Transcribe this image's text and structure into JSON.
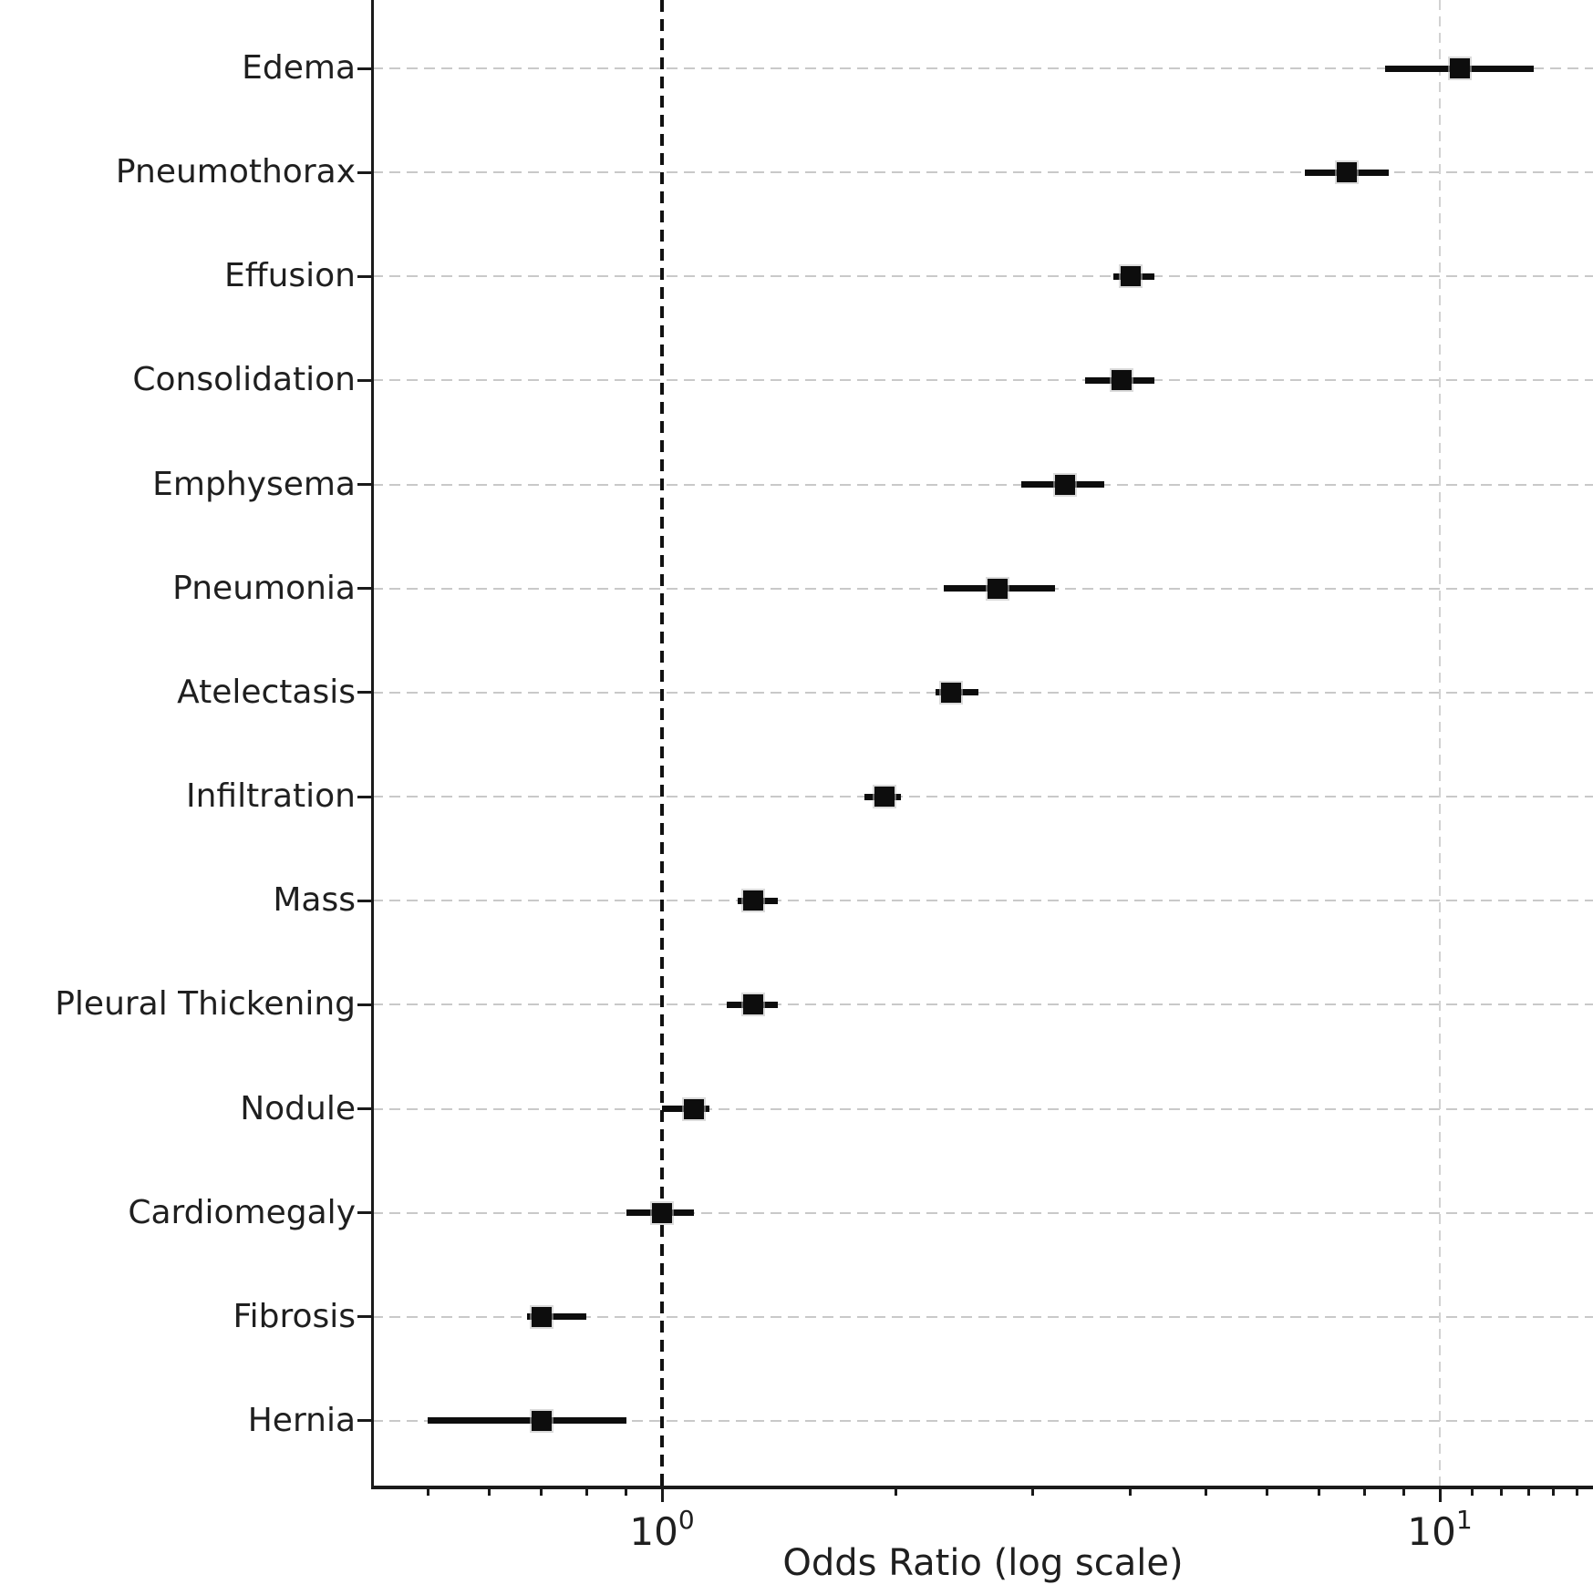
{
  "chart_data": {
    "type": "scatter",
    "subtype": "forest-plot-odds-ratios",
    "title": "",
    "xlabel": "Odds Ratio (log scale)",
    "ylabel": "",
    "x_scale": "log",
    "xlim": [
      0.43,
      15.7
    ],
    "grid": {
      "horizontal_dashed": true,
      "vertical_dashed_at": [
        10
      ],
      "color": "#c9c9c9"
    },
    "reference_line": {
      "x": 1.0,
      "style": "dashed",
      "color": "#111111"
    },
    "marker": {
      "shape": "square",
      "color": "#0d0d0d"
    },
    "legend": null,
    "x_major_ticks": [
      {
        "value": 1,
        "base": "10",
        "exp": "0"
      },
      {
        "value": 10,
        "base": "10",
        "exp": "1"
      }
    ],
    "x_minor_tick_values": [
      0.5,
      0.6,
      0.7,
      0.8,
      0.9,
      2,
      3,
      4,
      5,
      6,
      7,
      8,
      9,
      11,
      12,
      13,
      14,
      15
    ],
    "rows": [
      {
        "label": "Edema",
        "odds_ratio": 10.6,
        "ci_low": 8.5,
        "ci_high": 13.2
      },
      {
        "label": "Pneumothorax",
        "odds_ratio": 7.6,
        "ci_low": 6.7,
        "ci_high": 8.6
      },
      {
        "label": "Effusion",
        "odds_ratio": 4.0,
        "ci_low": 3.8,
        "ci_high": 4.3
      },
      {
        "label": "Consolidation",
        "odds_ratio": 3.9,
        "ci_low": 3.5,
        "ci_high": 4.3
      },
      {
        "label": "Emphysema",
        "odds_ratio": 3.3,
        "ci_low": 2.9,
        "ci_high": 3.7
      },
      {
        "label": "Pneumonia",
        "odds_ratio": 2.7,
        "ci_low": 2.3,
        "ci_high": 3.2
      },
      {
        "label": "Atelectasis",
        "odds_ratio": 2.35,
        "ci_low": 2.25,
        "ci_high": 2.55
      },
      {
        "label": "Infiltration",
        "odds_ratio": 1.93,
        "ci_low": 1.82,
        "ci_high": 2.03
      },
      {
        "label": "Mass",
        "odds_ratio": 1.31,
        "ci_low": 1.25,
        "ci_high": 1.41
      },
      {
        "label": "Pleural Thickening",
        "odds_ratio": 1.31,
        "ci_low": 1.21,
        "ci_high": 1.41
      },
      {
        "label": "Nodule",
        "odds_ratio": 1.1,
        "ci_low": 1.0,
        "ci_high": 1.15
      },
      {
        "label": "Cardiomegaly",
        "odds_ratio": 1.0,
        "ci_low": 0.9,
        "ci_high": 1.1
      },
      {
        "label": "Fibrosis",
        "odds_ratio": 0.7,
        "ci_low": 0.67,
        "ci_high": 0.8
      },
      {
        "label": "Hernia",
        "odds_ratio": 0.7,
        "ci_low": 0.5,
        "ci_high": 0.9
      }
    ]
  }
}
